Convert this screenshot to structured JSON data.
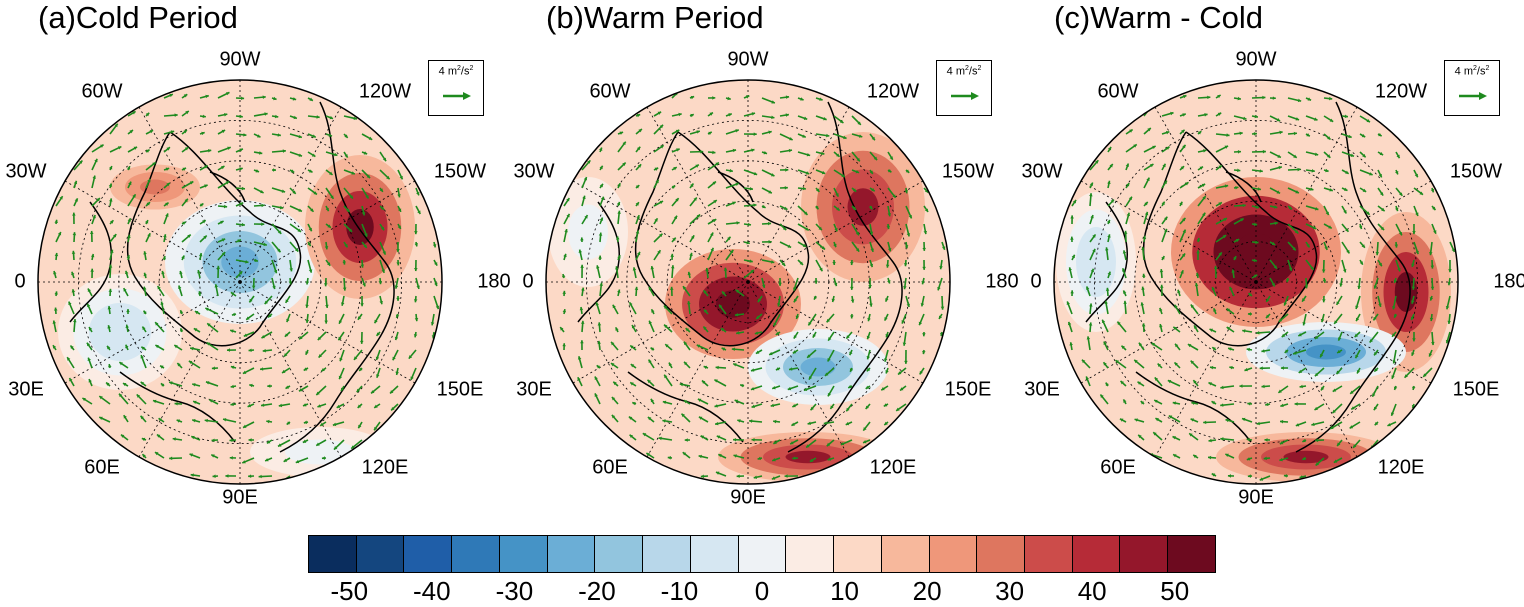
{
  "panels": [
    {
      "title": "(a)Cold Period",
      "reference_vector": {
        "magnitude": "4",
        "unit": "m2/s2",
        "color": "#1e8a1e"
      },
      "longitude_labels": [
        "90W",
        "120W",
        "150W",
        "180",
        "150E",
        "120E",
        "90E",
        "60E",
        "30E",
        "0",
        "30W",
        "60W"
      ],
      "anomaly_blobs": [
        {
          "name": "blob-polar-blue",
          "value": -30
        },
        {
          "name": "blob-pacific-red",
          "value": 35
        },
        {
          "name": "blob-atlantic-red",
          "value": 15
        },
        {
          "name": "blob-outer-blue",
          "value": -15
        },
        {
          "name": "blob-southwest-blue",
          "value": -10
        }
      ]
    },
    {
      "title": "(b)Warm Period",
      "reference_vector": {
        "magnitude": "4",
        "unit": "m2/s2",
        "color": "#1e8a1e"
      },
      "longitude_labels": [
        "90W",
        "120W",
        "150W",
        "180",
        "150E",
        "120E",
        "90E",
        "60E",
        "30E",
        "0",
        "30W",
        "60W"
      ],
      "anomaly_blobs": [
        {
          "name": "blob-europe-red",
          "value": 45
        },
        {
          "name": "blob-pacific-red",
          "value": 30
        },
        {
          "name": "blob-siberia-blue",
          "value": -30
        },
        {
          "name": "blob-asia-south-red",
          "value": 30
        },
        {
          "name": "blob-atlantic-blue",
          "value": -10
        }
      ]
    },
    {
      "title": "(c)Warm - Cold",
      "reference_vector": {
        "magnitude": "4",
        "unit": "m2/s2",
        "color": "#1e8a1e"
      },
      "longitude_labels": [
        "90W",
        "120W",
        "150W",
        "180",
        "150E",
        "120E",
        "90E",
        "60E",
        "30E",
        "0",
        "30W",
        "60W"
      ],
      "anomaly_blobs": [
        {
          "name": "blob-polar-red",
          "value": 50
        },
        {
          "name": "blob-pacific-red",
          "value": 35
        },
        {
          "name": "blob-siberia-blue",
          "value": -35
        },
        {
          "name": "blob-asia-south-red",
          "value": 30
        },
        {
          "name": "blob-atlantic-blue",
          "value": -15
        }
      ]
    }
  ],
  "colorbar": {
    "levels": [
      -55,
      -50,
      -45,
      -40,
      -35,
      -30,
      -25,
      -20,
      -15,
      -10,
      -5,
      0,
      5,
      10,
      15,
      20,
      25,
      30,
      35,
      40,
      45,
      50,
      55
    ],
    "tick_labels": [
      "-50",
      "-40",
      "-30",
      "-20",
      "-10",
      "0",
      "10",
      "20",
      "30",
      "40",
      "50"
    ],
    "colors": [
      "#0a2d5e",
      "#14467f",
      "#1f5ea8",
      "#2f79b7",
      "#4593c6",
      "#6baed6",
      "#92c5de",
      "#b8d7ea",
      "#d6e7f2",
      "#eef2f5",
      "#fbece4",
      "#fcd9c6",
      "#f7b89c",
      "#ef977a",
      "#de765f",
      "#cc4c4a",
      "#b62b37",
      "#94172b",
      "#6d0a1f"
    ]
  },
  "styles": {
    "vector_color": "#1e8a1e",
    "coast_color": "#000000",
    "grid_color": "#000000"
  }
}
